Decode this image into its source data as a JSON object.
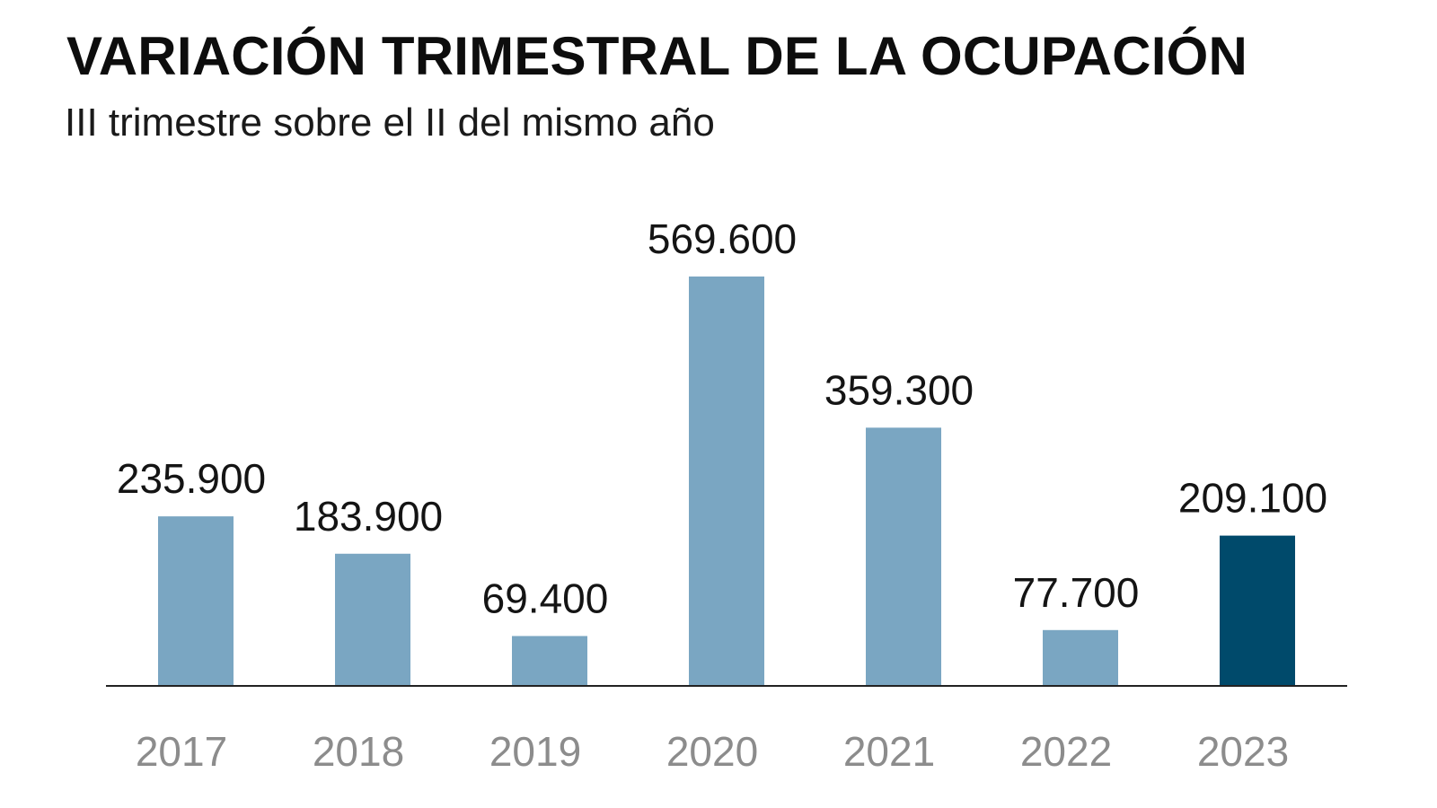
{
  "title": "VARIACIÓN TRIMESTRAL DE LA OCUPACIÓN",
  "subtitle": "III trimestre sobre el II del mismo año",
  "colors": {
    "bar": "#7aa6c2",
    "bar_highlight": "#004a6b",
    "axis": "#222222",
    "tick_text": "#8c8c8c",
    "value_text": "#141414"
  },
  "chart_data": {
    "type": "bar",
    "title": "VARIACIÓN TRIMESTRAL DE LA OCUPACIÓN",
    "subtitle": "III trimestre sobre el II del mismo año",
    "xlabel": "",
    "ylabel": "",
    "categories": [
      "2017",
      "2018",
      "2019",
      "2020",
      "2021",
      "2022",
      "2023"
    ],
    "values": [
      235900,
      183900,
      69400,
      569600,
      359300,
      77700,
      209100
    ],
    "value_labels": [
      "235.900",
      "183.900",
      "69.400",
      "569.600",
      "359.300",
      "77.700",
      "209.100"
    ],
    "highlight_category": "2023",
    "ylim": [
      0,
      569600
    ],
    "grid": false,
    "legend": "none"
  }
}
